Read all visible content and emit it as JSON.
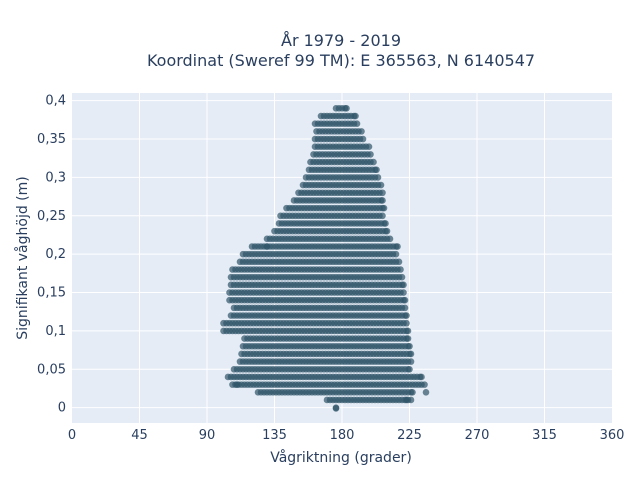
{
  "chart_data": {
    "type": "scatter",
    "title_lines": [
      "År 1979 - 2019",
      "Koordinat (Sweref 99 TM): E 365563, N 6140547"
    ],
    "xlabel": "Vågriktning (grader)",
    "ylabel": "Signifikant våghöjd (m)",
    "xlim": [
      0,
      360
    ],
    "ylim": [
      -0.02,
      0.41
    ],
    "x_ticks": [
      0,
      45,
      90,
      135,
      180,
      225,
      270,
      315,
      360
    ],
    "x_tick_labels": [
      "0",
      "45",
      "90",
      "135",
      "180",
      "225",
      "270",
      "315",
      "360"
    ],
    "y_ticks": [
      0,
      0.05,
      0.1,
      0.15,
      0.2,
      0.25,
      0.3,
      0.35,
      0.4
    ],
    "y_tick_labels": [
      "0",
      "0,05",
      "0,1",
      "0,15",
      "0,2",
      "0,25",
      "0,3",
      "0,35",
      "0,4"
    ],
    "grid": true,
    "marker_color": "#2f5468",
    "marker_opacity": 0.7,
    "height_step": 0.01,
    "bands": [
      {
        "h": 0.0,
        "x_min": 176,
        "x_max": 176
      },
      {
        "h": 0.01,
        "x_min": 170,
        "x_max": 226
      },
      {
        "h": 0.02,
        "x_min": 124,
        "x_max": 227
      },
      {
        "h": 0.03,
        "x_min": 107,
        "x_max": 235
      },
      {
        "h": 0.04,
        "x_min": 104,
        "x_max": 233
      },
      {
        "h": 0.05,
        "x_min": 108,
        "x_max": 225
      },
      {
        "h": 0.06,
        "x_min": 112,
        "x_max": 226
      },
      {
        "h": 0.07,
        "x_min": 113,
        "x_max": 226
      },
      {
        "h": 0.08,
        "x_min": 114,
        "x_max": 225
      },
      {
        "h": 0.09,
        "x_min": 115,
        "x_max": 224
      },
      {
        "h": 0.1,
        "x_min": 101,
        "x_max": 224
      },
      {
        "h": 0.11,
        "x_min": 101,
        "x_max": 223
      },
      {
        "h": 0.12,
        "x_min": 106,
        "x_max": 223
      },
      {
        "h": 0.13,
        "x_min": 108,
        "x_max": 222
      },
      {
        "h": 0.14,
        "x_min": 105,
        "x_max": 222
      },
      {
        "h": 0.15,
        "x_min": 105,
        "x_max": 221
      },
      {
        "h": 0.16,
        "x_min": 106,
        "x_max": 221
      },
      {
        "h": 0.17,
        "x_min": 106,
        "x_max": 220
      },
      {
        "h": 0.18,
        "x_min": 107,
        "x_max": 219
      },
      {
        "h": 0.19,
        "x_min": 112,
        "x_max": 218
      },
      {
        "h": 0.2,
        "x_min": 114,
        "x_max": 216
      },
      {
        "h": 0.21,
        "x_min": 120,
        "x_max": 217
      },
      {
        "h": 0.22,
        "x_min": 130,
        "x_max": 212
      },
      {
        "h": 0.23,
        "x_min": 135,
        "x_max": 210
      },
      {
        "h": 0.24,
        "x_min": 138,
        "x_max": 209
      },
      {
        "h": 0.25,
        "x_min": 139,
        "x_max": 207
      },
      {
        "h": 0.26,
        "x_min": 143,
        "x_max": 208
      },
      {
        "h": 0.27,
        "x_min": 148,
        "x_max": 207
      },
      {
        "h": 0.28,
        "x_min": 151,
        "x_max": 207
      },
      {
        "h": 0.29,
        "x_min": 154,
        "x_max": 206
      },
      {
        "h": 0.3,
        "x_min": 156,
        "x_max": 204
      },
      {
        "h": 0.31,
        "x_min": 158,
        "x_max": 203
      },
      {
        "h": 0.32,
        "x_min": 159,
        "x_max": 201
      },
      {
        "h": 0.33,
        "x_min": 161,
        "x_max": 199
      },
      {
        "h": 0.34,
        "x_min": 162,
        "x_max": 198
      },
      {
        "h": 0.35,
        "x_min": 162,
        "x_max": 194
      },
      {
        "h": 0.36,
        "x_min": 163,
        "x_max": 193
      },
      {
        "h": 0.37,
        "x_min": 162,
        "x_max": 190
      },
      {
        "h": 0.38,
        "x_min": 166,
        "x_max": 189
      },
      {
        "h": 0.39,
        "x_min": 176,
        "x_max": 183
      }
    ],
    "outliers": [
      {
        "x": 176,
        "y": -0.001
      },
      {
        "x": 110,
        "y": 0.03
      },
      {
        "x": 236,
        "y": 0.02
      },
      {
        "x": 223,
        "y": 0.01
      },
      {
        "x": 130,
        "y": 0.21
      }
    ]
  }
}
